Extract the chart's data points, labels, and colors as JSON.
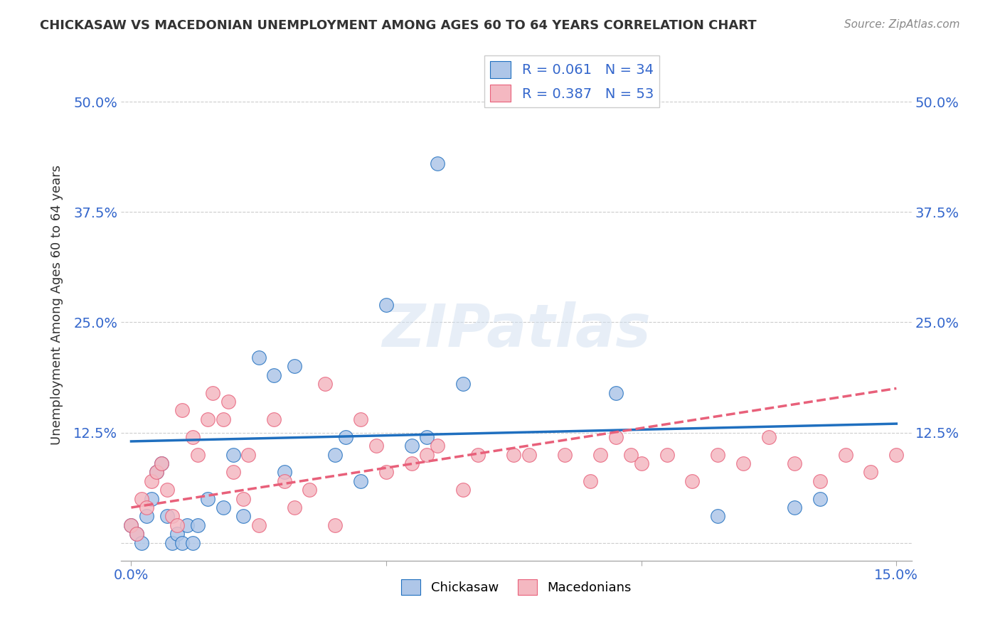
{
  "title": "CHICKASAW VS MACEDONIAN UNEMPLOYMENT AMONG AGES 60 TO 64 YEARS CORRELATION CHART",
  "source": "Source: ZipAtlas.com",
  "xlabel": "",
  "ylabel": "Unemployment Among Ages 60 to 64 years",
  "xlim": [
    0.0,
    0.15
  ],
  "ylim": [
    -0.02,
    0.55
  ],
  "xticks": [
    0.0,
    0.05,
    0.1,
    0.15
  ],
  "xtick_labels": [
    "0.0%",
    "",
    "",
    "15.0%"
  ],
  "ytick_positions": [
    0.0,
    0.125,
    0.25,
    0.375,
    0.5
  ],
  "ytick_labels": [
    "",
    "12.5%",
    "25.0%",
    "37.5%",
    "50.0%"
  ],
  "chickasaw_color": "#aec6e8",
  "macedonian_color": "#f4b8c1",
  "chickasaw_line_color": "#1f6fbf",
  "macedonian_line_color": "#e8607a",
  "chickasaw_R": 0.061,
  "chickasaw_N": 34,
  "macedonian_R": 0.387,
  "macedonian_N": 53,
  "watermark": "ZIPatlas",
  "background_color": "#ffffff",
  "grid_color": "#cccccc",
  "chickasaw_x": [
    0.0,
    0.001,
    0.002,
    0.003,
    0.004,
    0.005,
    0.006,
    0.007,
    0.008,
    0.009,
    0.01,
    0.011,
    0.012,
    0.013,
    0.015,
    0.018,
    0.02,
    0.022,
    0.025,
    0.028,
    0.03,
    0.032,
    0.04,
    0.042,
    0.045,
    0.05,
    0.055,
    0.058,
    0.06,
    0.065,
    0.095,
    0.115,
    0.13,
    0.135
  ],
  "chickasaw_y": [
    0.02,
    0.01,
    0.0,
    0.03,
    0.05,
    0.08,
    0.09,
    0.03,
    0.0,
    0.01,
    0.0,
    0.02,
    0.0,
    0.02,
    0.05,
    0.04,
    0.1,
    0.03,
    0.21,
    0.19,
    0.08,
    0.2,
    0.1,
    0.12,
    0.07,
    0.27,
    0.11,
    0.12,
    0.43,
    0.18,
    0.17,
    0.03,
    0.04,
    0.05
  ],
  "macedonian_x": [
    0.0,
    0.001,
    0.002,
    0.003,
    0.004,
    0.005,
    0.006,
    0.007,
    0.008,
    0.009,
    0.01,
    0.012,
    0.013,
    0.015,
    0.018,
    0.02,
    0.022,
    0.025,
    0.028,
    0.03,
    0.032,
    0.035,
    0.04,
    0.045,
    0.05,
    0.055,
    0.06,
    0.065,
    0.075,
    0.085,
    0.09,
    0.095,
    0.1,
    0.105,
    0.11,
    0.115,
    0.12,
    0.125,
    0.13,
    0.135,
    0.14,
    0.145,
    0.15,
    0.016,
    0.019,
    0.023,
    0.038,
    0.048,
    0.058,
    0.068,
    0.078,
    0.092,
    0.098
  ],
  "macedonian_y": [
    0.02,
    0.01,
    0.05,
    0.04,
    0.07,
    0.08,
    0.09,
    0.06,
    0.03,
    0.02,
    0.15,
    0.12,
    0.1,
    0.14,
    0.14,
    0.08,
    0.05,
    0.02,
    0.14,
    0.07,
    0.04,
    0.06,
    0.02,
    0.14,
    0.08,
    0.09,
    0.11,
    0.06,
    0.1,
    0.1,
    0.07,
    0.12,
    0.09,
    0.1,
    0.07,
    0.1,
    0.09,
    0.12,
    0.09,
    0.07,
    0.1,
    0.08,
    0.1,
    0.17,
    0.16,
    0.1,
    0.18,
    0.11,
    0.1,
    0.1,
    0.1,
    0.1,
    0.1
  ]
}
